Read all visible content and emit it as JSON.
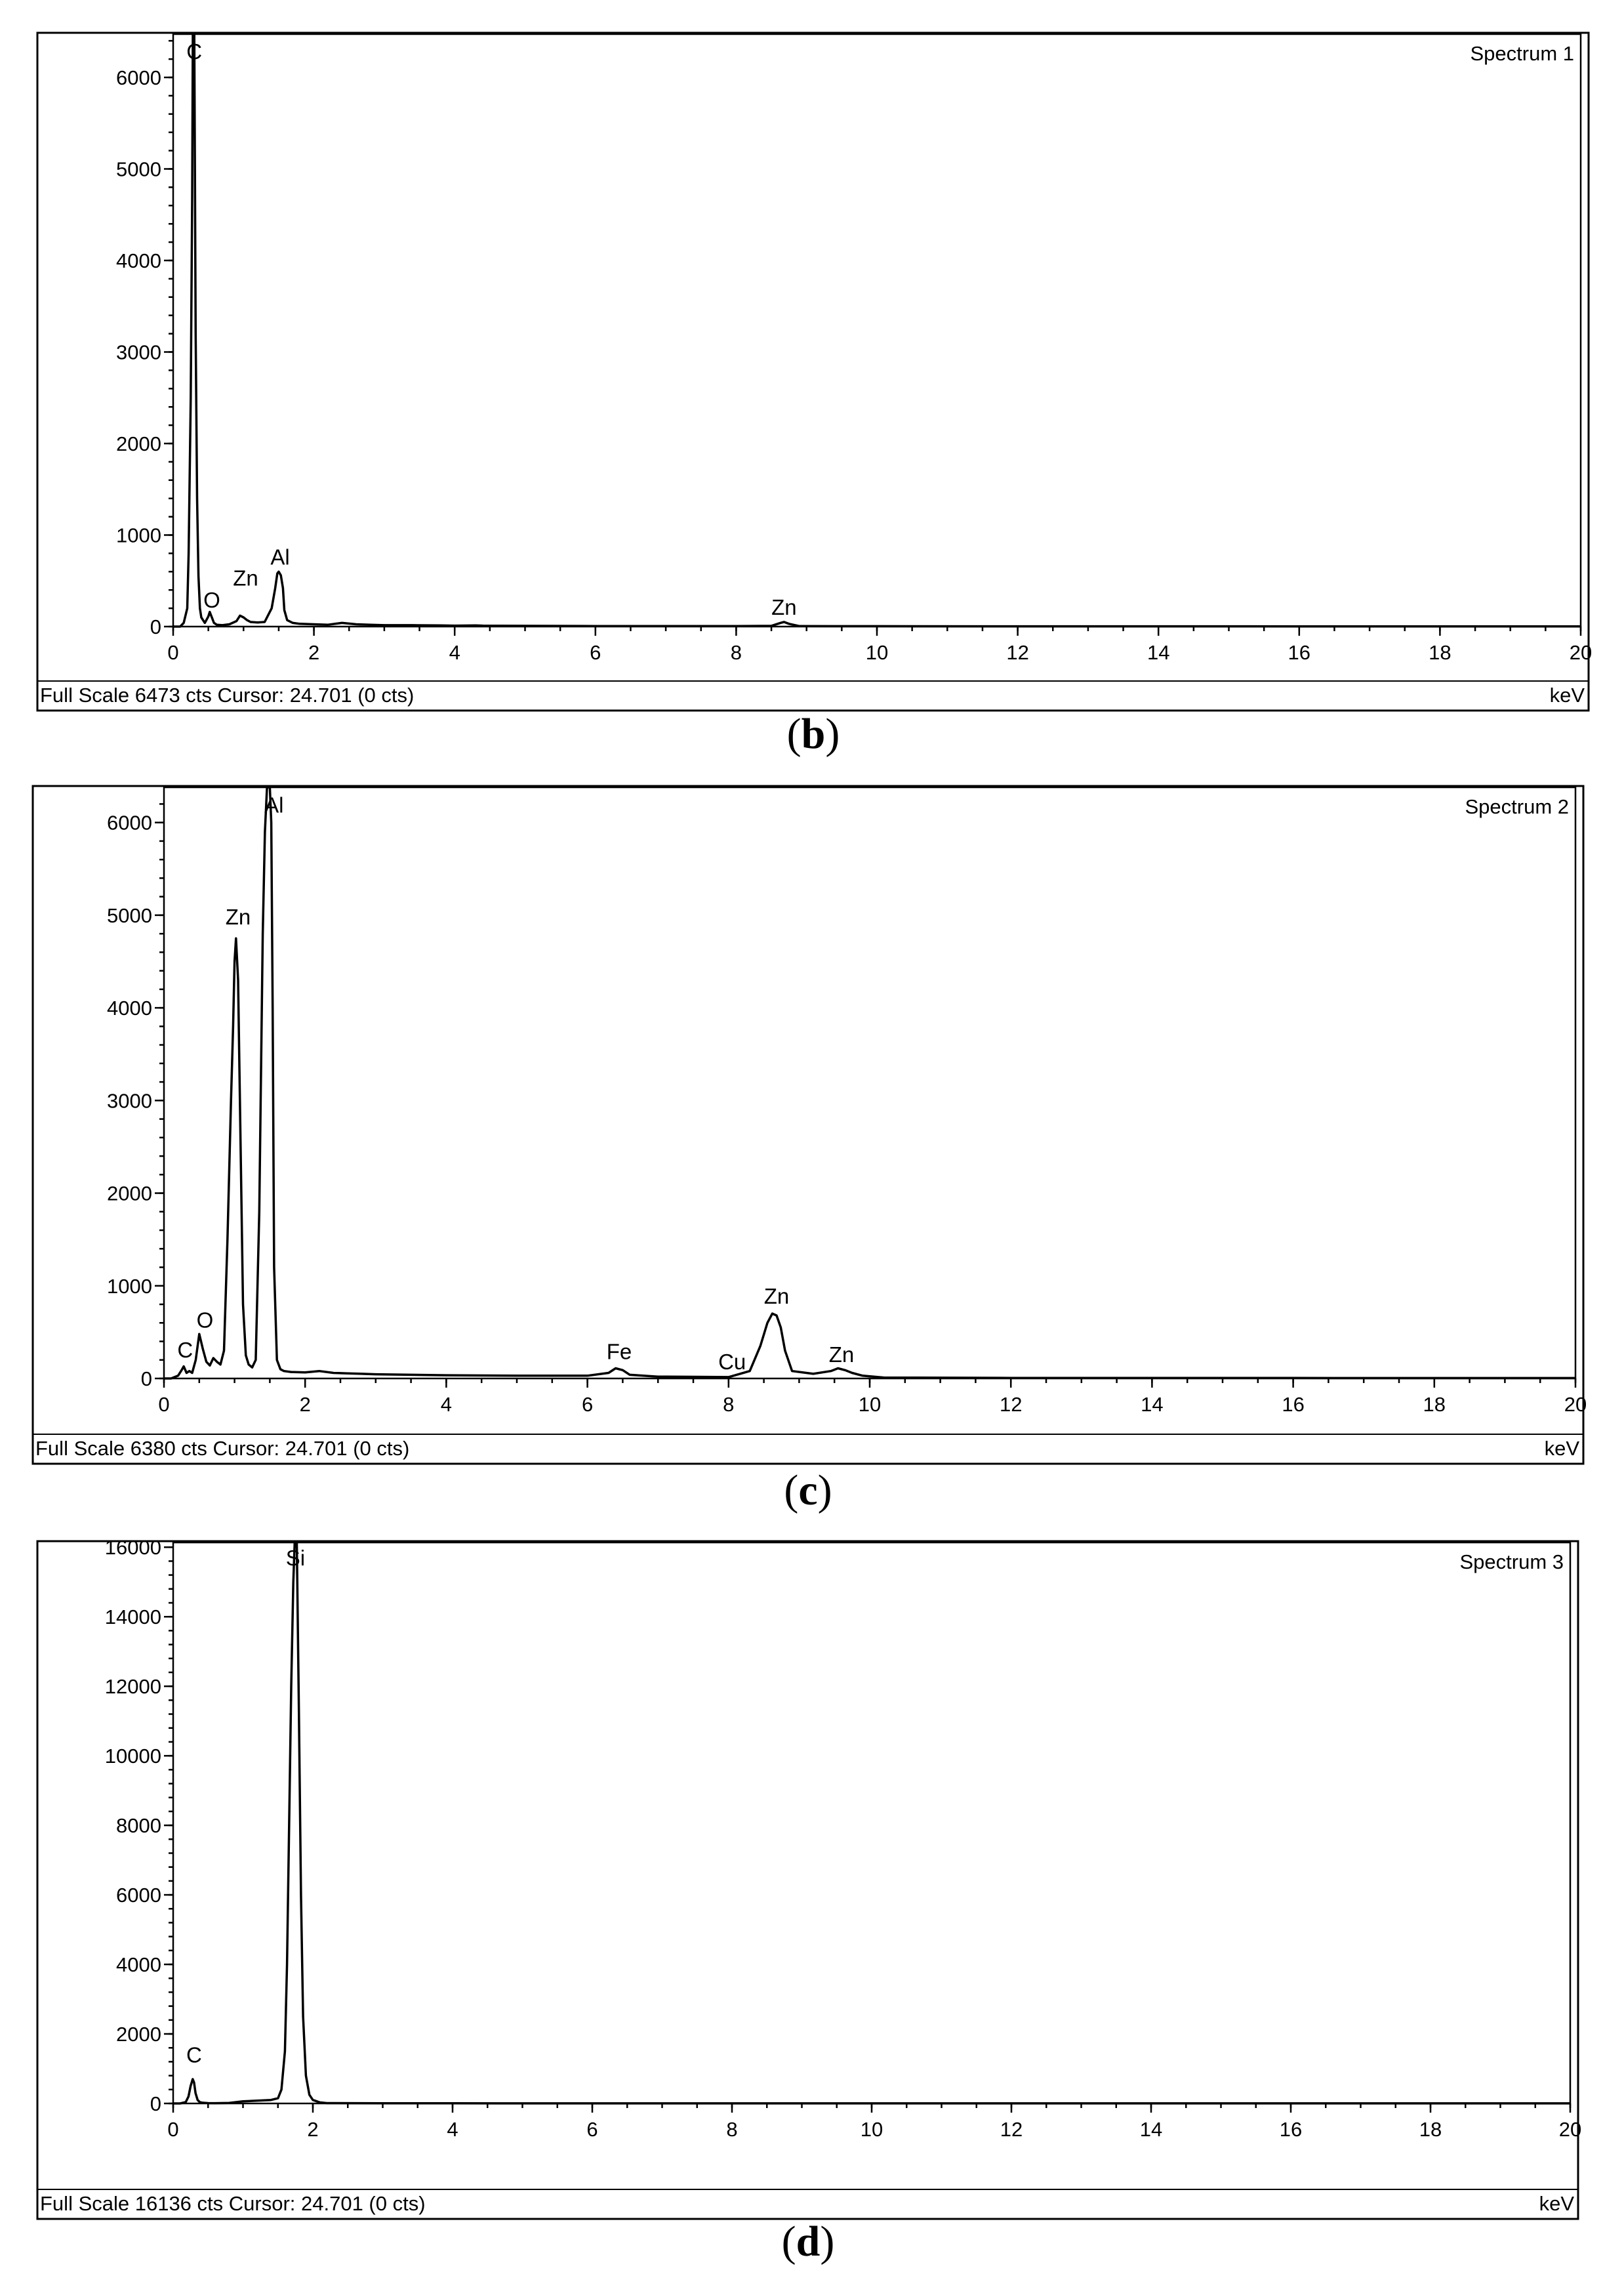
{
  "chart_data": [
    {
      "type": "line",
      "spectrum_label": "Spectrum 1",
      "caption_letter": "b",
      "xlim": [
        0,
        20
      ],
      "ylim": [
        0,
        6473
      ],
      "x_ticks": [
        0,
        2,
        4,
        6,
        8,
        10,
        12,
        14,
        16,
        18,
        20
      ],
      "y_ticks": [
        0,
        1000,
        2000,
        3000,
        4000,
        5000,
        6000
      ],
      "unit_label": "keV",
      "footer_text": "Full Scale 6473 cts Cursor: 24.701  (0 cts)",
      "series": [
        {
          "x": [
            0,
            0.1,
            0.15,
            0.2,
            0.22,
            0.25,
            0.27,
            0.28,
            0.29,
            0.3,
            0.31,
            0.32,
            0.34,
            0.36,
            0.38,
            0.4,
            0.45,
            0.5,
            0.52,
            0.55,
            0.58,
            0.62,
            0.7,
            0.8,
            0.9,
            0.95,
            1.0,
            1.05,
            1.1,
            1.2,
            1.3,
            1.4,
            1.45,
            1.48,
            1.5,
            1.53,
            1.56,
            1.58,
            1.62,
            1.7,
            1.8,
            2.0,
            2.2,
            2.4,
            2.6,
            2.8,
            3.0,
            3.4,
            3.8,
            4.0,
            4.3,
            4.4,
            5.0,
            6.0,
            7.0,
            8.0,
            8.5,
            8.63,
            8.68,
            8.75,
            8.9,
            10.0,
            12.0,
            14.0,
            16.0,
            18.0,
            20.0
          ],
          "y": [
            0,
            0,
            40,
            200,
            800,
            2500,
            4700,
            6473,
            6473,
            6473,
            4800,
            3200,
            1400,
            550,
            200,
            100,
            40,
            110,
            160,
            100,
            40,
            20,
            15,
            25,
            60,
            120,
            100,
            70,
            50,
            45,
            50,
            200,
            420,
            580,
            600,
            560,
            420,
            180,
            70,
            40,
            30,
            25,
            20,
            40,
            25,
            20,
            15,
            15,
            12,
            10,
            12,
            10,
            8,
            6,
            6,
            6,
            8,
            40,
            50,
            30,
            5,
            4,
            3,
            3,
            2,
            2,
            2
          ]
        }
      ],
      "annotations": [
        {
          "text": "C",
          "x": 0.3,
          "y": 6173
        },
        {
          "text": "O",
          "x": 0.55,
          "y": 180
        },
        {
          "text": "Zn",
          "x": 1.03,
          "y": 420
        },
        {
          "text": "Al",
          "x": 1.52,
          "y": 650
        },
        {
          "text": "Zn",
          "x": 8.68,
          "y": 100
        }
      ]
    },
    {
      "type": "line",
      "spectrum_label": "Spectrum 2",
      "caption_letter": "c",
      "xlim": [
        0,
        20
      ],
      "ylim": [
        0,
        6380
      ],
      "x_ticks": [
        0,
        2,
        4,
        6,
        8,
        10,
        12,
        14,
        16,
        18,
        20
      ],
      "y_ticks": [
        0,
        1000,
        2000,
        3000,
        4000,
        5000,
        6000
      ],
      "unit_label": "keV",
      "footer_text": "Full Scale 6380 cts Cursor: 24.701  (0 cts)",
      "series": [
        {
          "x": [
            0,
            0.1,
            0.2,
            0.25,
            0.28,
            0.32,
            0.36,
            0.4,
            0.45,
            0.5,
            0.55,
            0.6,
            0.65,
            0.7,
            0.75,
            0.8,
            0.85,
            0.9,
            0.95,
            0.98,
            1.0,
            1.02,
            1.05,
            1.08,
            1.12,
            1.16,
            1.2,
            1.25,
            1.3,
            1.35,
            1.4,
            1.43,
            1.46,
            1.48,
            1.5,
            1.52,
            1.54,
            1.56,
            1.6,
            1.65,
            1.7,
            1.8,
            2.0,
            2.2,
            2.4,
            2.6,
            2.8,
            3.0,
            3.5,
            4.0,
            5.0,
            6.0,
            6.3,
            6.4,
            6.5,
            6.6,
            7.0,
            7.5,
            8.0,
            8.3,
            8.45,
            8.55,
            8.62,
            8.68,
            8.74,
            8.8,
            8.9,
            9.2,
            9.45,
            9.55,
            9.65,
            9.75,
            9.9,
            10.2,
            12.0,
            14.0,
            16.0,
            18.0,
            20.0
          ],
          "y": [
            0,
            0,
            30,
            90,
            130,
            60,
            80,
            60,
            200,
            480,
            320,
            180,
            140,
            220,
            180,
            150,
            300,
            1500,
            3000,
            3800,
            4500,
            4750,
            4300,
            2800,
            800,
            250,
            150,
            120,
            200,
            1800,
            4800,
            5900,
            6380,
            6380,
            6380,
            6000,
            4000,
            1200,
            200,
            100,
            80,
            70,
            65,
            80,
            60,
            55,
            50,
            45,
            40,
            35,
            30,
            30,
            60,
            110,
            90,
            40,
            20,
            18,
            15,
            80,
            350,
            600,
            700,
            680,
            550,
            300,
            80,
            50,
            80,
            110,
            90,
            60,
            30,
            10,
            6,
            5,
            5,
            4,
            4
          ]
        }
      ],
      "annotations": [
        {
          "text": "C",
          "x": 0.3,
          "y": 200
        },
        {
          "text": "O",
          "x": 0.58,
          "y": 520
        },
        {
          "text": "Zn",
          "x": 1.05,
          "y": 4870
        },
        {
          "text": "Al",
          "x": 1.56,
          "y": 6080
        },
        {
          "text": "Fe",
          "x": 6.45,
          "y": 180
        },
        {
          "text": "Cu",
          "x": 8.05,
          "y": 70
        },
        {
          "text": "Zn",
          "x": 8.68,
          "y": 780
        },
        {
          "text": "Zn",
          "x": 9.6,
          "y": 150
        }
      ]
    },
    {
      "type": "line",
      "spectrum_label": "Spectrum 3",
      "caption_letter": "d",
      "xlim": [
        0,
        20
      ],
      "ylim": [
        0,
        16136
      ],
      "x_ticks": [
        0,
        2,
        4,
        6,
        8,
        10,
        12,
        14,
        16,
        18,
        20
      ],
      "y_ticks": [
        0,
        2000,
        4000,
        6000,
        8000,
        10000,
        12000,
        14000,
        16000
      ],
      "unit_label": "keV",
      "footer_text": "Full Scale 16136 cts Cursor: 24.701  (0 cts)",
      "series": [
        {
          "x": [
            0,
            0.1,
            0.18,
            0.22,
            0.25,
            0.28,
            0.3,
            0.32,
            0.35,
            0.38,
            0.42,
            0.5,
            0.6,
            0.8,
            1.0,
            1.2,
            1.4,
            1.5,
            1.55,
            1.6,
            1.63,
            1.66,
            1.69,
            1.72,
            1.74,
            1.77,
            1.8,
            1.83,
            1.86,
            1.9,
            1.95,
            2.0,
            2.1,
            2.2,
            3.0,
            4.0,
            6.0,
            8.0,
            10.0,
            12.0,
            14.0,
            16.0,
            18.0,
            20.0
          ],
          "y": [
            0,
            0,
            40,
            200,
            500,
            700,
            600,
            300,
            100,
            40,
            20,
            10,
            8,
            15,
            60,
            80,
            100,
            150,
            400,
            1500,
            4000,
            8000,
            12000,
            15000,
            16136,
            16136,
            11300,
            6000,
            2500,
            800,
            250,
            100,
            30,
            10,
            5,
            3,
            2,
            2,
            2,
            2,
            2,
            2,
            2,
            2
          ]
        }
      ],
      "annotations": [
        {
          "text": "C",
          "x": 0.3,
          "y": 1100
        },
        {
          "text": "Si",
          "x": 1.75,
          "y": 15400
        }
      ]
    }
  ]
}
